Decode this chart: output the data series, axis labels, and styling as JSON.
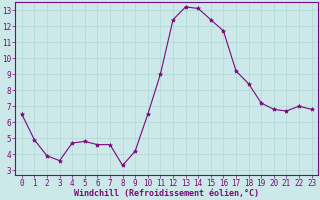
{
  "x": [
    0,
    1,
    2,
    3,
    4,
    5,
    6,
    7,
    8,
    9,
    10,
    11,
    12,
    13,
    14,
    15,
    16,
    17,
    18,
    19,
    20,
    21,
    22,
    23
  ],
  "y": [
    6.5,
    4.9,
    3.9,
    3.6,
    4.7,
    4.8,
    4.6,
    4.6,
    3.3,
    4.2,
    6.5,
    9.0,
    12.4,
    13.2,
    13.1,
    12.4,
    11.7,
    9.2,
    8.4,
    7.2,
    6.8,
    6.7,
    7.0,
    6.8
  ],
  "line_color": "#7b0a7b",
  "marker": "*",
  "marker_color": "#7b0a7b",
  "marker_size": 3,
  "bg_color": "#cce8e8",
  "grid_color": "#b0d8d8",
  "xlabel": "Windchill (Refroidissement éolien,°C)",
  "xlabel_color": "#7b0a7b",
  "xlabel_fontsize": 6.0,
  "tick_color": "#7b0a7b",
  "tick_fontsize": 5.5,
  "xlim": [
    -0.5,
    23.5
  ],
  "ylim": [
    2.7,
    13.5
  ],
  "yticks": [
    3,
    4,
    5,
    6,
    7,
    8,
    9,
    10,
    11,
    12,
    13
  ],
  "xticks": [
    0,
    1,
    2,
    3,
    4,
    5,
    6,
    7,
    8,
    9,
    10,
    11,
    12,
    13,
    14,
    15,
    16,
    17,
    18,
    19,
    20,
    21,
    22,
    23
  ],
  "spine_color": "#7b0a7b",
  "linewidth": 0.8
}
